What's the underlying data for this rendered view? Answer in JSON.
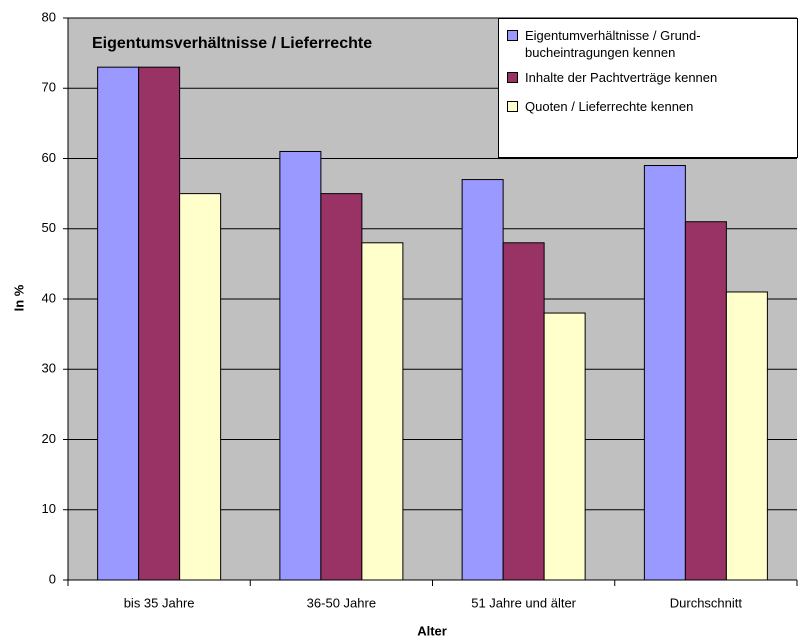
{
  "chart_data": {
    "type": "bar",
    "title": "Eigentumsverhältnisse / Lieferrechte",
    "x_label": "Alter",
    "y_label": "In %",
    "categories": [
      "bis 35 Jahre",
      "36-50 Jahre",
      "51 Jahre und älter",
      "Durchschnitt"
    ],
    "series": [
      {
        "name": "Eigentumverhältnisse / Grund- bucheintragungen kennen",
        "color": "#9999ff",
        "values": [
          73,
          61,
          57,
          59
        ]
      },
      {
        "name": "Inhalte der Pachtverträge kennen",
        "color": "#993366",
        "values": [
          73,
          55,
          48,
          51
        ]
      },
      {
        "name": "Quoten / Lieferrechte kennen",
        "color": "#ffffcc",
        "values": [
          55,
          48,
          38,
          41
        ]
      }
    ],
    "ylim": [
      0,
      80
    ],
    "yticks": [
      0,
      10,
      20,
      30,
      40,
      50,
      60,
      70,
      80
    ],
    "grid": true,
    "legend": "top-right",
    "background": "#c0c0c0"
  }
}
